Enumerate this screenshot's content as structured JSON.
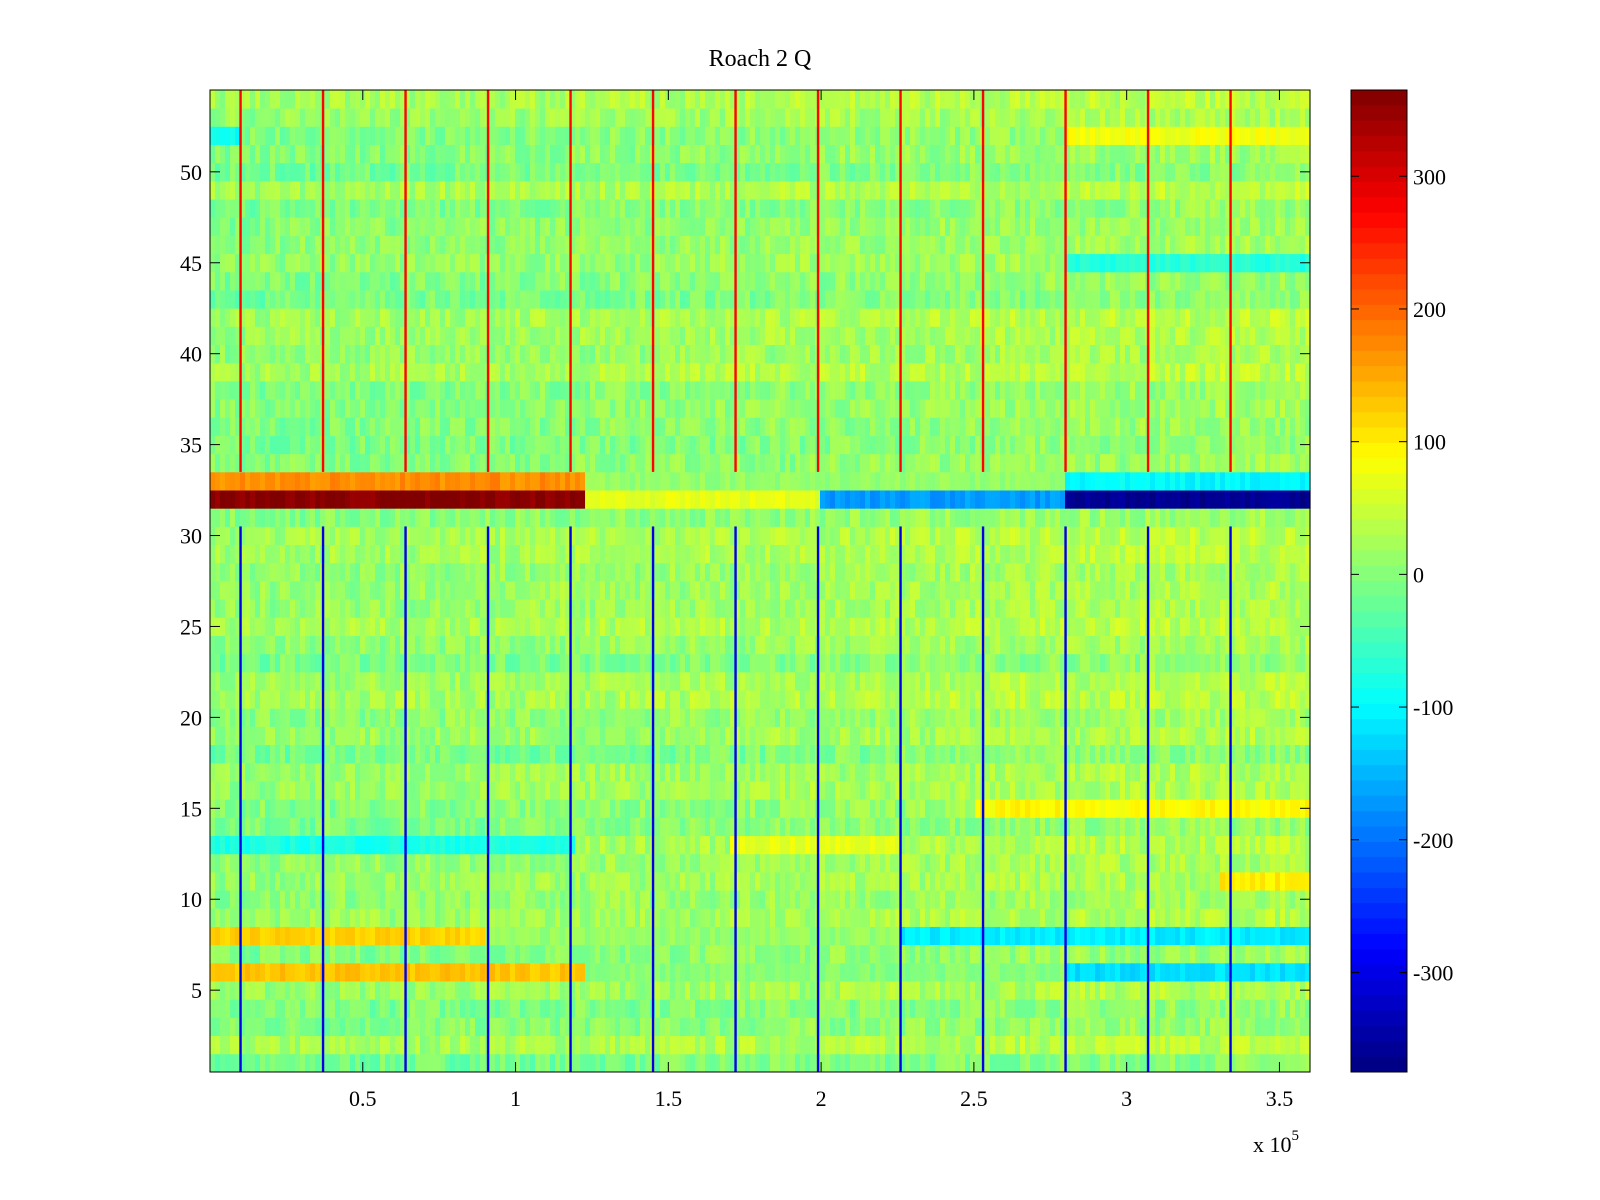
{
  "chart_data": {
    "type": "heatmap",
    "title": "Roach 2 Q",
    "xlabel": "",
    "ylabel": "",
    "x_exponent_label": "x 10",
    "x_exponent": "5",
    "xlim": [
      0,
      3.6
    ],
    "ylim": [
      0.5,
      54.5
    ],
    "x_ticks": [
      0.5,
      1,
      1.5,
      2,
      2.5,
      3,
      3.5
    ],
    "x_tick_labels": [
      "0.5",
      "1",
      "1.5",
      "2",
      "2.5",
      "3",
      "3.5"
    ],
    "y_ticks": [
      5,
      10,
      15,
      20,
      25,
      30,
      35,
      40,
      45,
      50
    ],
    "y_tick_labels": [
      "5",
      "10",
      "15",
      "20",
      "25",
      "30",
      "35",
      "40",
      "45",
      "50"
    ],
    "rows": 54,
    "colorbar": {
      "colormap": "jet",
      "clim": [
        -375,
        365
      ],
      "ticks": [
        300,
        200,
        100,
        0,
        -100,
        -200,
        -300
      ],
      "tick_labels": [
        "300",
        "200",
        "100",
        "0",
        "-100",
        "-200",
        "-300"
      ]
    },
    "spike_columns_x": [
      0.1,
      0.37,
      0.64,
      0.91,
      1.18,
      1.45,
      1.72,
      1.99,
      2.26,
      2.53,
      2.8,
      3.07,
      3.34
    ],
    "row_bands": [
      {
        "row": 32,
        "segments": [
          {
            "x_start": 0,
            "x_end": 1.22,
            "value": 360
          },
          {
            "x_start": 1.22,
            "x_end": 2.0,
            "value": 70
          },
          {
            "x_start": 2.0,
            "x_end": 2.8,
            "value": -170
          },
          {
            "x_start": 2.8,
            "x_end": 3.6,
            "value": -360
          }
        ]
      },
      {
        "row": 33,
        "segments": [
          {
            "x_start": 0,
            "x_end": 1.22,
            "value": 170
          },
          {
            "x_start": 1.22,
            "x_end": 2.8,
            "value": 10
          },
          {
            "x_start": 2.8,
            "x_end": 3.6,
            "value": -100
          }
        ]
      },
      {
        "row": 8,
        "segments": [
          {
            "x_start": 0,
            "x_end": 0.9,
            "value": 120
          },
          {
            "x_start": 0.9,
            "x_end": 2.26,
            "value": 10
          },
          {
            "x_start": 2.26,
            "x_end": 3.6,
            "value": -110
          }
        ]
      },
      {
        "row": 6,
        "segments": [
          {
            "x_start": 0,
            "x_end": 1.22,
            "value": 130
          },
          {
            "x_start": 1.22,
            "x_end": 2.8,
            "value": 0
          },
          {
            "x_start": 2.8,
            "x_end": 3.6,
            "value": -120
          }
        ]
      },
      {
        "row": 13,
        "segments": [
          {
            "x_start": 0,
            "x_end": 1.2,
            "value": -80
          },
          {
            "x_start": 1.7,
            "x_end": 2.26,
            "value": 70
          }
        ]
      },
      {
        "row": 15,
        "segments": [
          {
            "x_start": 2.5,
            "x_end": 3.6,
            "value": 90
          }
        ]
      },
      {
        "row": 11,
        "segments": [
          {
            "x_start": 3.3,
            "x_end": 3.6,
            "value": 100
          }
        ]
      },
      {
        "row": 52,
        "segments": [
          {
            "x_start": 0,
            "x_end": 0.1,
            "value": -90
          },
          {
            "x_start": 2.8,
            "x_end": 3.6,
            "value": 80
          }
        ]
      },
      {
        "row": 45,
        "segments": [
          {
            "x_start": 2.8,
            "x_end": 3.6,
            "value": -70
          }
        ]
      }
    ]
  }
}
